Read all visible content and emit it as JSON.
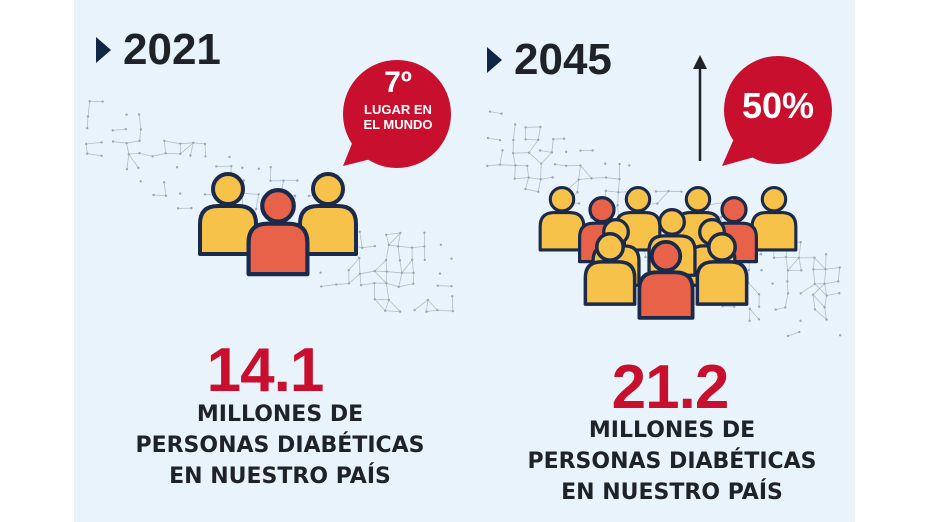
{
  "panels": [
    {
      "year": "2021",
      "bubble": {
        "main": "7º",
        "line1": "LUGAR EN",
        "line2": "EL MUNDO"
      },
      "value": "14.1",
      "caption": [
        "MILLONES DE",
        "PERSONAS DIABÉTICAS",
        "EN NUESTRO PAÍS"
      ]
    },
    {
      "year": "2045",
      "bubble": {
        "main": "50%"
      },
      "value": "21.2",
      "caption": [
        "MILLONES DE",
        "PERSONAS DIABÉTICAS",
        "EN NUESTRO PAÍS"
      ]
    }
  ],
  "colors": {
    "background": "#e8f3fb",
    "accent_red": "#c8102e",
    "person_yellow": "#f7c24a",
    "person_orange": "#e8624a",
    "outline": "#1b2a4a",
    "map_dots": "#9aa7b3"
  },
  "icons": [
    "play-arrow-icon",
    "people-group-icon",
    "speech-bubble-icon",
    "up-arrow-icon",
    "map-network-pattern"
  ]
}
